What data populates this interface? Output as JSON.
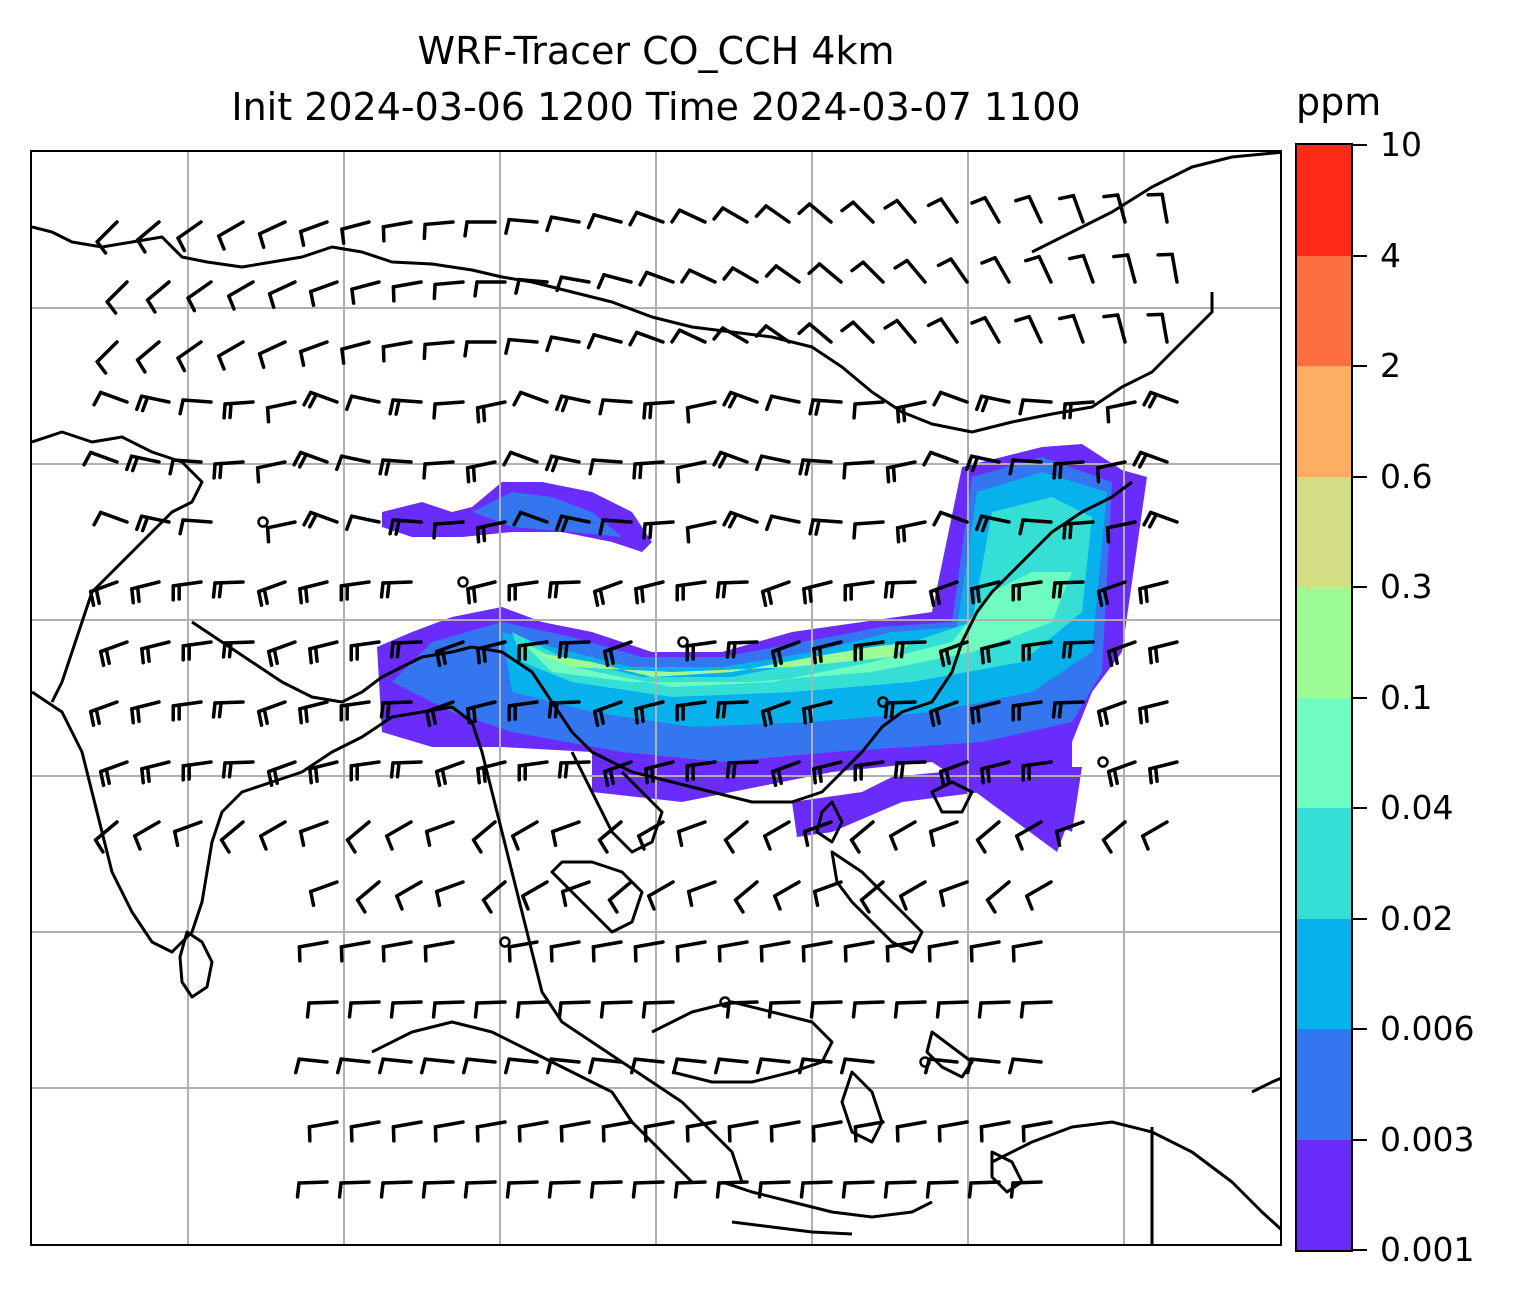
{
  "title": {
    "line1": "WRF-Tracer CO_CCH 4km",
    "line2": "Init 2024-03-06 1200 Time 2024-03-07 1100"
  },
  "colorbar": {
    "unit": "ppm",
    "ticks": [
      "0.001",
      "0.003",
      "0.006",
      "0.02",
      "0.04",
      "0.1",
      "0.3",
      "0.6",
      "2",
      "4",
      "10"
    ],
    "colors": [
      "#6a2cfb",
      "#3476f0",
      "#06b1ec",
      "#36dfd6",
      "#6ffcc1",
      "#9efc95",
      "#d3de84",
      "#feae62",
      "#fd6f3e",
      "#ff2a18"
    ]
  },
  "map": {
    "type": "contour-filled tracer concentration with wind barbs",
    "gridlines": true,
    "coastlines": true
  },
  "icons": {
    "wind_barb": "wind-barb-icon",
    "calm": "calm-circle-icon"
  }
}
